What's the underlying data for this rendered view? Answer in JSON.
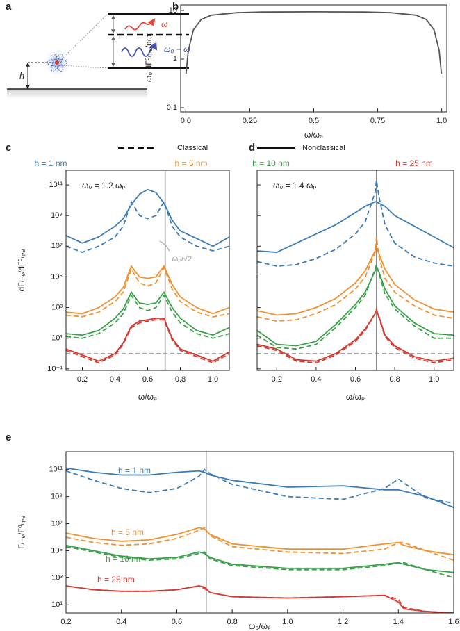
{
  "diagram": {
    "label": "a",
    "height_label": "h",
    "emission_labels": [
      "ω",
      "ω₀ − ω"
    ]
  },
  "legend": {
    "styles": [
      "Classical",
      "Nonclassical"
    ],
    "heights": [
      "h = 1 nm",
      "h = 5 nm",
      "h = 10 nm",
      "h = 25 nm"
    ],
    "colors": [
      "#3a7bb5",
      "#f0902f",
      "#3aa14a",
      "#d23a32"
    ]
  },
  "chart_data": [
    {
      "type": "line",
      "panel": "b",
      "xlabel": "ω/ω₀",
      "ylabel": "ω₀ dΓ⁰ₜₚₑ/dω",
      "ylog": true,
      "xlim": [
        -0.02,
        1.02
      ],
      "ylim": [
        0.082,
        13
      ],
      "xticks": [
        {
          "value": 0,
          "label": "0.0"
        },
        0.25,
        0.5,
        0.75,
        {
          "value": 1,
          "label": "1.0"
        }
      ],
      "yticks": [
        0.1,
        1,
        10
      ],
      "x": [
        0.001,
        0.01,
        0.03,
        0.06,
        0.1,
        0.2,
        0.3,
        0.5,
        0.7,
        0.8,
        0.9,
        0.94,
        0.97,
        0.99,
        0.999
      ],
      "series": [
        {
          "color": "#555555",
          "style": "solid",
          "values": [
            0.5,
            1.5,
            4,
            6.5,
            8,
            9,
            9.3,
            9.4,
            9.3,
            9,
            8,
            6.5,
            4,
            1.5,
            0.5
          ]
        }
      ]
    },
    {
      "type": "line",
      "panel": "c",
      "xlabel": "ω/ωₚ",
      "ylabel": "dΓₜₚₑ/dΓ⁰ₜₚₑ",
      "ylog": true,
      "ytick_labels": true,
      "annotation": "ω₀ = 1.2 ωₚ",
      "vline": 0.707,
      "vline_label": "ωₚ/√2",
      "hline": 1,
      "xlim": [
        0.1,
        1.1
      ],
      "ylim": [
        0.08,
        900000000000.0
      ],
      "xticks": [
        0.2,
        0.4,
        0.6,
        0.8,
        {
          "value": 1,
          "label": "1.0"
        }
      ],
      "yticks": [
        {
          "value": 0.1,
          "label": "10⁻¹"
        },
        {
          "value": 10,
          "label": "10¹"
        },
        {
          "value": 1000,
          "label": "10³"
        },
        {
          "value": 100000,
          "label": "10⁵"
        },
        {
          "value": 10000000,
          "label": "10⁷"
        },
        {
          "value": 1000000000,
          "label": "10⁹"
        },
        {
          "value": 100000000000,
          "label": "10¹¹"
        }
      ],
      "x": [
        0.1,
        0.2,
        0.3,
        0.4,
        0.45,
        0.5,
        0.55,
        0.6,
        0.65,
        0.7,
        0.75,
        0.8,
        0.9,
        1.0,
        1.1
      ],
      "series": [
        {
          "color": "#3a7bb5",
          "style": "solid",
          "values": [
            50000000.0,
            16000000.0,
            40000000.0,
            200000000.0,
            630000000.0,
            5000000000.0,
            25000000000.0,
            50000000000.0,
            32000000000.0,
            6300000000.0,
            500000000.0,
            100000000.0,
            32000000.0,
            10000000.0,
            40000000.0
          ]
        },
        {
          "color": "#3a7bb5",
          "style": "dashed",
          "values": [
            10000000.0,
            4000000.0,
            10000000.0,
            40000000.0,
            200000000.0,
            8000000000.0,
            1000000000.0,
            630000000.0,
            1000000000.0,
            8000000000.0,
            200000000.0,
            40000000.0,
            10000000.0,
            5000000.0,
            10000000.0
          ]
        },
        {
          "color": "#f0902f",
          "style": "solid",
          "values": [
            500,
            400,
            1000,
            5000,
            20000.0,
            500000.0,
            100000.0,
            80000.0,
            100000.0,
            500000.0,
            32000.0,
            5000,
            1000,
            400,
            1000
          ]
        },
        {
          "color": "#f0902f",
          "style": "dashed",
          "values": [
            320,
            250,
            500,
            2500,
            10000.0,
            320000.0,
            40000.0,
            25000.0,
            40000.0,
            400000.0,
            16000.0,
            2500,
            500,
            250,
            400
          ]
        },
        {
          "color": "#3aa14a",
          "style": "solid",
          "values": [
            20,
            16,
            32,
            200,
            800,
            10000.0,
            2000,
            1600,
            2000,
            10000.0,
            1000,
            200,
            32,
            16,
            50
          ]
        },
        {
          "color": "#3aa14a",
          "style": "dashed",
          "values": [
            13,
            10,
            20,
            100,
            400,
            6300,
            1000,
            630,
            1000,
            6300,
            500,
            100,
            20,
            10,
            20
          ]
        },
        {
          "color": "#d23a32",
          "style": "solid",
          "values": [
            2,
            0.8,
            0.32,
            1,
            5,
            63,
            130,
            160,
            200,
            200,
            10,
            2,
            0.8,
            0.32,
            1.3
          ]
        },
        {
          "color": "#d23a32",
          "style": "dashed",
          "values": [
            1.6,
            0.63,
            0.25,
            0.8,
            4,
            50,
            100,
            130,
            160,
            160,
            8,
            1.6,
            0.63,
            0.25,
            1
          ]
        }
      ]
    },
    {
      "type": "line",
      "panel": "d",
      "xlabel": "ω/ωₚ",
      "ylog": true,
      "ytick_labels": false,
      "annotation": "ω₀ = 1.4 ωₚ",
      "vline": 0.707,
      "hline": 1,
      "xlim": [
        0.1,
        1.1
      ],
      "ylim": [
        0.08,
        900000000000.0
      ],
      "xticks": [
        0.2,
        0.4,
        0.6,
        0.8,
        {
          "value": 1,
          "label": "1.0"
        }
      ],
      "yticks": [
        0.1,
        10,
        1000,
        100000,
        10000000,
        1000000000,
        100000000000
      ],
      "x": [
        0.1,
        0.2,
        0.3,
        0.4,
        0.5,
        0.6,
        0.65,
        0.7,
        0.707,
        0.72,
        0.75,
        0.8,
        0.9,
        1.0,
        1.1
      ],
      "series": [
        {
          "color": "#3a7bb5",
          "style": "solid",
          "values": [
            5000000.0,
            4000000.0,
            16000000.0,
            63000000.0,
            250000000.0,
            1600000000.0,
            4000000000.0,
            8000000000.0,
            8000000000.0,
            6300000000.0,
            4000000000.0,
            1000000000.0,
            200000000.0,
            40000000.0,
            8000000.0
          ]
        },
        {
          "color": "#3a7bb5",
          "style": "dashed",
          "values": [
            1000000.0,
            500000.0,
            630000.0,
            1600000.0,
            6300000.0,
            63000000.0,
            400000000.0,
            32000000000.0,
            200000000000.0,
            16000000000.0,
            250000000.0,
            16000000.0,
            2000000.0,
            800000.0,
            500000.0
          ]
        },
        {
          "color": "#f0902f",
          "style": "solid",
          "values": [
            630,
            320,
            400,
            1000,
            4000,
            40000.0,
            250000.0,
            5000000.0,
            8000000.0,
            3200000.0,
            320000.0,
            32000.0,
            3200,
            800,
            500
          ]
        },
        {
          "color": "#f0902f",
          "style": "dashed",
          "values": [
            250,
            130,
            160,
            400,
            1600,
            16000.0,
            100000.0,
            4000000.0,
            40000000.0,
            2000000.0,
            80000.0,
            10000.0,
            1300,
            320,
            200
          ]
        },
        {
          "color": "#3aa14a",
          "style": "solid",
          "values": [
            32,
            4,
            3.2,
            6.3,
            80,
            1600,
            10000.0,
            250000.0,
            400000.0,
            200000.0,
            16000.0,
            1300,
            100,
            20,
            16
          ]
        },
        {
          "color": "#3aa14a",
          "style": "dashed",
          "values": [
            16,
            2.5,
            2,
            4,
            50,
            1000,
            6300,
            320000.0,
            630000.0,
            160000.0,
            8000,
            800,
            63,
            10,
            10
          ]
        },
        {
          "color": "#d23a32",
          "style": "solid",
          "values": [
            4,
            2,
            0.4,
            0.32,
            1,
            8,
            40,
            400,
            630,
            250,
            16,
            3.2,
            0.63,
            0.32,
            0.5
          ]
        },
        {
          "color": "#d23a32",
          "style": "dashed",
          "values": [
            3.2,
            1.6,
            0.32,
            0.25,
            0.8,
            6.3,
            32,
            400,
            800,
            200,
            13,
            2.5,
            0.5,
            0.25,
            0.4
          ]
        }
      ]
    },
    {
      "type": "line",
      "panel": "e",
      "xlabel": "ω₀/ωₚ",
      "ylabel": "Γₜₚₑ/Γ⁰ₜₚₑ",
      "ylog": true,
      "ytick_labels": true,
      "vline": 0.707,
      "curve_labels": [
        "h = 1 nm",
        "h = 5 nm",
        "h = 10 nm",
        "h = 25 nm"
      ],
      "xlim": [
        0.2,
        1.6
      ],
      "ylim": [
        2.5,
        2100000000000.0
      ],
      "xticks": [
        0.2,
        0.4,
        0.6,
        0.8,
        {
          "value": 1,
          "label": "1.0"
        },
        1.2,
        1.4,
        1.6
      ],
      "yticks": [
        {
          "value": 10,
          "label": "10¹"
        },
        {
          "value": 1000,
          "label": "10³"
        },
        {
          "value": 100000,
          "label": "10⁵"
        },
        {
          "value": 10000000,
          "label": "10⁷"
        },
        {
          "value": 1000000000,
          "label": "10⁹"
        },
        {
          "value": 100000000000,
          "label": "10¹¹"
        }
      ],
      "x": [
        0.2,
        0.3,
        0.4,
        0.5,
        0.6,
        0.68,
        0.7,
        0.72,
        0.8,
        1.0,
        1.2,
        1.35,
        1.4,
        1.42,
        1.5,
        1.6
      ],
      "series": [
        {
          "color": "#3a7bb5",
          "style": "solid",
          "values": [
            130000000000.0,
            63000000000.0,
            40000000000.0,
            40000000000.0,
            63000000000.0,
            80000000000.0,
            63000000000.0,
            40000000000.0,
            16000000000.0,
            5000000000.0,
            6300000000.0,
            3200000000.0,
            3200000000.0,
            2500000000.0,
            1000000000.0,
            160000000.0
          ]
        },
        {
          "color": "#3a7bb5",
          "style": "dashed",
          "values": [
            80000000000.0,
            16000000000.0,
            4000000000.0,
            2000000000.0,
            4000000000.0,
            32000000000.0,
            100000000000.0,
            50000000000.0,
            8000000000.0,
            1000000000.0,
            630000000.0,
            4000000000.0,
            20000000000.0,
            10000000000.0,
            800000000.0,
            320000000.0
          ]
        },
        {
          "color": "#f0902f",
          "style": "solid",
          "values": [
            2000000.0,
            800000.0,
            500000.0,
            630000.0,
            1600000.0,
            5000000.0,
            4000000.0,
            1600000.0,
            320000.0,
            130000.0,
            130000.0,
            320000.0,
            400000.0,
            250000.0,
            100000.0,
            50000.0
          ]
        },
        {
          "color": "#f0902f",
          "style": "dashed",
          "values": [
            1000000.0,
            400000.0,
            250000.0,
            320000.0,
            800000.0,
            3200000.0,
            5000000.0,
            1300000.0,
            200000.0,
            80000.0,
            63000.0,
            130000.0,
            400000.0,
            400000.0,
            100000.0,
            20000.0
          ]
        },
        {
          "color": "#3aa14a",
          "style": "solid",
          "values": [
            250000.0,
            100000.0,
            40000.0,
            25000.0,
            32000.0,
            80000.0,
            63000.0,
            32000.0,
            10000.0,
            5000,
            5000,
            10000.0,
            13000.0,
            10000.0,
            4000,
            2500
          ]
        },
        {
          "color": "#3aa14a",
          "style": "dashed",
          "values": [
            200000.0,
            80000.0,
            32000.0,
            20000.0,
            25000.0,
            63000.0,
            80000.0,
            25000.0,
            8000,
            4000,
            4000,
            8000,
            13000.0,
            13000.0,
            4000,
            1000
          ]
        },
        {
          "color": "#d23a32",
          "style": "solid",
          "values": [
            250,
            130,
            100,
            100,
            130,
            250,
            200,
            80,
            40,
            32,
            40,
            50,
            16,
            5,
            3.2,
            2.5
          ]
        },
        {
          "color": "#d23a32",
          "style": "dashed",
          "values": [
            250,
            130,
            100,
            100,
            130,
            250,
            160,
            80,
            40,
            32,
            40,
            50,
            25,
            6.3,
            3.2,
            2.5
          ]
        }
      ]
    }
  ]
}
